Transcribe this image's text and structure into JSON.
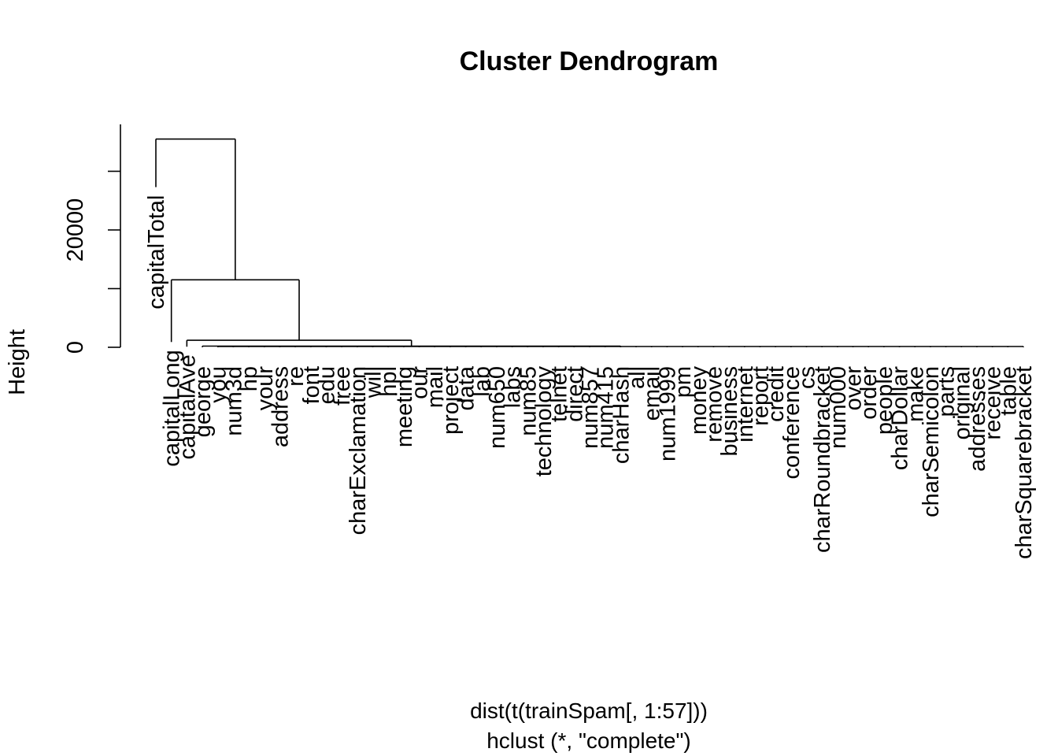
{
  "chart_data": {
    "type": "dendrogram",
    "title": "Cluster Dendrogram",
    "ylabel": "Height",
    "xlabel": "dist(t(trainSpam[, 1:57]))",
    "sublabel": "hclust (*, \"complete\")",
    "yticks": [
      0,
      20000
    ],
    "ylim": [
      0,
      35000
    ],
    "leaves": [
      "capitalTotal",
      "capitalLong",
      "capitalAve",
      "george",
      "you",
      "num3d",
      "hp",
      "your",
      "address",
      "re",
      "font",
      "edu",
      "free",
      "charExclamation",
      "will",
      "hpl",
      "meeting",
      "our",
      "mail",
      "project",
      "data",
      "lab",
      "num650",
      "labs",
      "num85",
      "technology",
      "telnet",
      "direct",
      "num857",
      "num415",
      "charHash",
      "all",
      "email",
      "num1999",
      "pm",
      "money",
      "remove",
      "business",
      "internet",
      "report",
      "credit",
      "conference",
      "cs",
      "charRoundbracket",
      "num000",
      "over",
      "order",
      "people",
      "charDollar",
      "make",
      "charSemicolon",
      "parts",
      "original",
      "addresses",
      "receive",
      "table",
      "charSquarebracket"
    ],
    "merges": [
      {
        "height": 35500,
        "members": [
          "capitalTotal",
          "rest"
        ]
      },
      {
        "height": 11500,
        "members": [
          "capitalLong",
          "rest"
        ]
      },
      {
        "height": 1200,
        "members": [
          "capitalAve",
          "rest"
        ]
      },
      {
        "height": 200,
        "members": [
          "george",
          "rest"
        ]
      },
      {
        "height": 0,
        "members": [
          "you ... charSquarebracket"
        ]
      }
    ]
  }
}
